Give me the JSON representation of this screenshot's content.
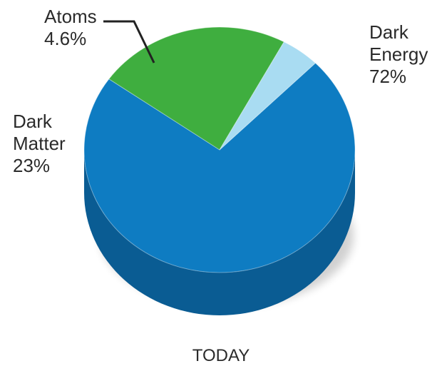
{
  "chart_data": {
    "type": "pie",
    "title": "",
    "caption": "TODAY",
    "slices": [
      {
        "label_lines": [
          "Dark",
          "Energy"
        ],
        "value": 72,
        "value_text": "72%",
        "color": "#0e7cc2",
        "side_color": "#0a5c93"
      },
      {
        "label_lines": [
          "Dark",
          "Matter"
        ],
        "value": 23,
        "value_text": "23%",
        "color": "#3fae3f",
        "side_color": "#2c8a2c"
      },
      {
        "label_lines": [
          "Atoms"
        ],
        "value": 4.6,
        "value_text": "4.6%",
        "color": "#a9dcf2",
        "side_color": "#7cbfdd"
      }
    ]
  }
}
